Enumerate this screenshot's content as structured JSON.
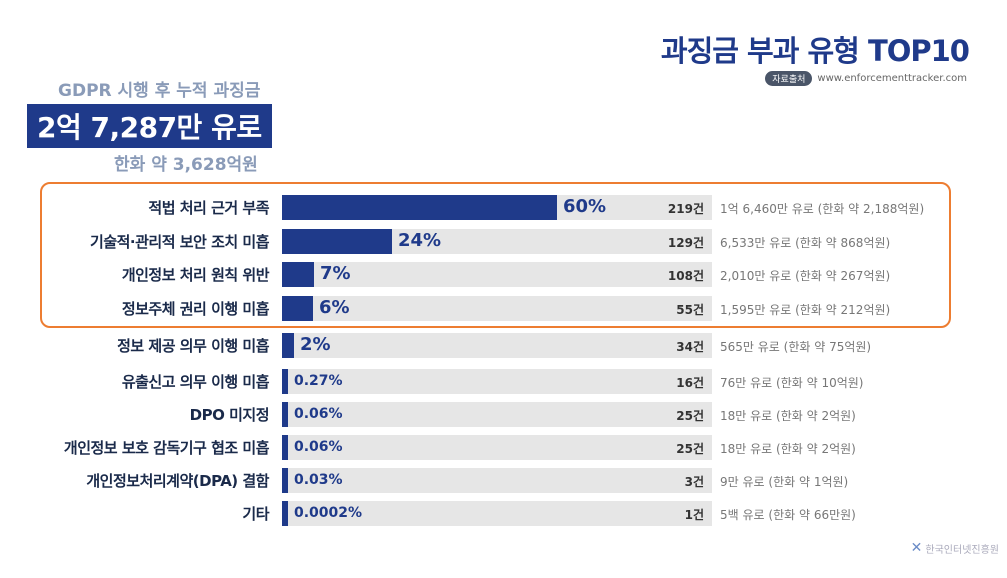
{
  "header": {
    "title": "과징금 부과 유형 TOP10",
    "source_tag": "자료출처",
    "source_url": "www.enforcementtracker.com"
  },
  "summary": {
    "caption": "GDPR 시행 후 누적 과징금",
    "total": "2억 7,287만 유로",
    "krw": "한화 약 3,628억원"
  },
  "colors": {
    "bar": "#1f3a8a",
    "track": "#e6e6e6",
    "highlight": "#ed7d31"
  },
  "chart_data": {
    "type": "bar",
    "orientation": "horizontal",
    "highlighted_top": 4,
    "categories": [
      "적법 처리 근거 부족",
      "기술적·관리적 보안 조치 미흡",
      "개인정보 처리 원칙 위반",
      "정보주체 권리 이행 미흡",
      "정보 제공 의무 이행 미흡",
      "유출신고 의무 이행 미흡",
      "DPO 미지정",
      "개인정보 보호 감독기구 협조 미흡",
      "개인정보처리계약(DPA) 결함",
      "기타"
    ],
    "values": [
      60,
      24,
      7,
      6,
      2,
      0.27,
      0.06,
      0.06,
      0.03,
      0.0002
    ],
    "labels": [
      "60%",
      "24%",
      "7%",
      "6%",
      "2%",
      "0.27%",
      "0.06%",
      "0.06%",
      "0.03%",
      "0.0002%"
    ],
    "counts": [
      "219건",
      "129건",
      "108건",
      "55건",
      "34건",
      "16건",
      "25건",
      "25건",
      "3건",
      "1건"
    ],
    "amounts": [
      "1억 6,460만 유로 (한화 약 2,188억원)",
      "6,533만 유로 (한화 약 868억원)",
      "2,010만 유로 (한화 약 267억원)",
      "1,595만 유로 (한화 약 212억원)",
      "565만 유로 (한화 약 75억원)",
      "76만 유로 (한화 약 10억원)",
      "18만 유로 (한화 약 2억원)",
      "18만 유로 (한화 약 2억원)",
      "9만 유로 (한화 약 1억원)",
      "5백 유로 (한화 약 66만원)"
    ]
  },
  "footer": {
    "logo": "KISA 한국인터넷진흥원"
  }
}
